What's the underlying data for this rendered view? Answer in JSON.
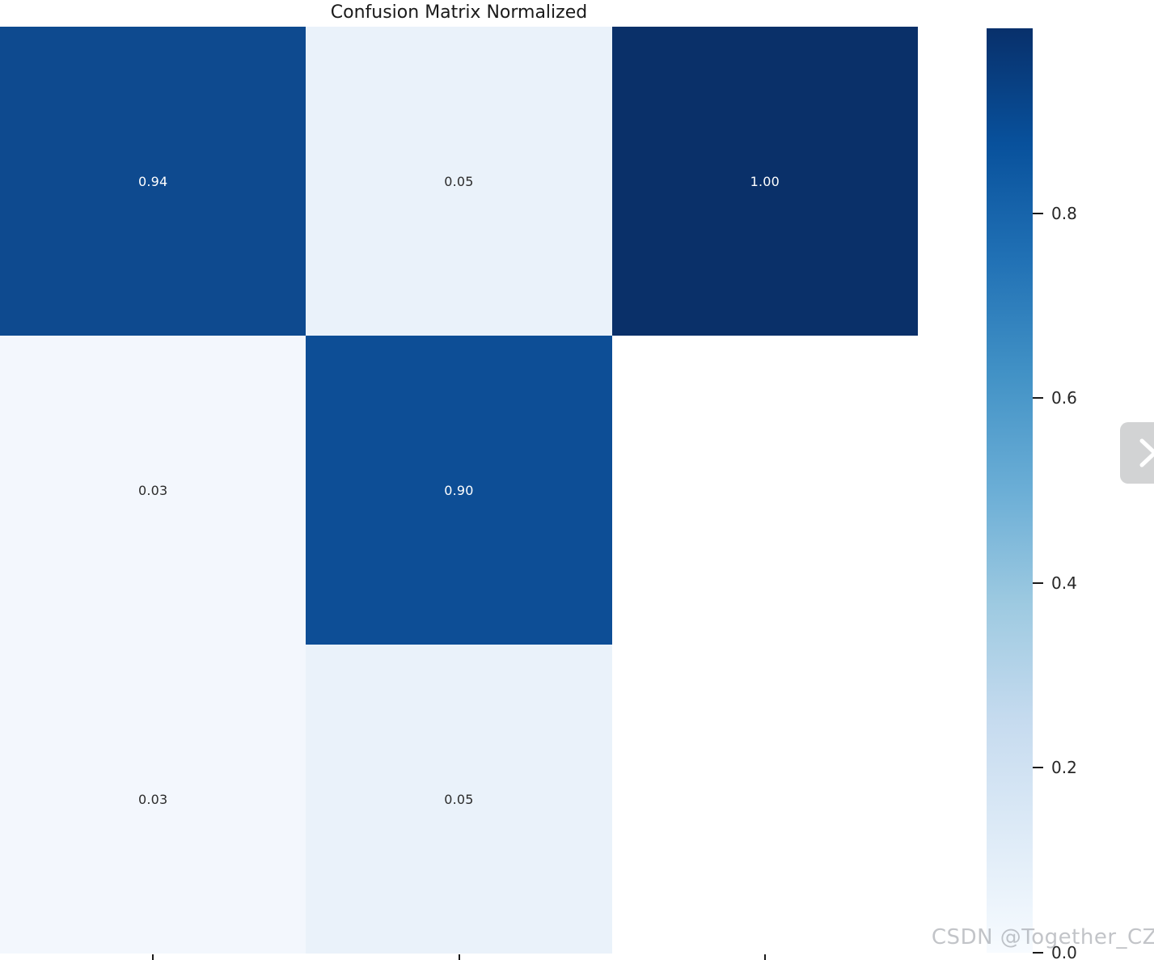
{
  "title": "Confusion Matrix Normalized",
  "watermark": "CSDN @Together_CZ",
  "next_button": {
    "icon": "chevron-right"
  },
  "chart_data": {
    "type": "heatmap",
    "title": "Confusion Matrix Normalized",
    "colormap": "Blues",
    "rows": 3,
    "cols": 3,
    "values": [
      [
        0.94,
        0.05,
        1.0
      ],
      [
        0.03,
        0.9,
        null
      ],
      [
        0.03,
        0.05,
        null
      ]
    ],
    "cells": [
      [
        {
          "label": "0.94",
          "bg": "#0e4a8f",
          "fg": "#ffffff"
        },
        {
          "label": "0.05",
          "bg": "#eaf2fa",
          "fg": "#2b2b2b"
        },
        {
          "label": "1.00",
          "bg": "#0a3069",
          "fg": "#ffffff"
        }
      ],
      [
        {
          "label": "0.03",
          "bg": "#f3f7fd",
          "fg": "#2b2b2b"
        },
        {
          "label": "0.90",
          "bg": "#0d4e96",
          "fg": "#ffffff"
        },
        {
          "label": "",
          "bg": "#ffffff",
          "fg": "#2b2b2b"
        }
      ],
      [
        {
          "label": "0.03",
          "bg": "#f3f7fd",
          "fg": "#2b2b2b"
        },
        {
          "label": "0.05",
          "bg": "#eaf2fa",
          "fg": "#2b2b2b"
        },
        {
          "label": "",
          "bg": "#ffffff",
          "fg": "#2b2b2b"
        }
      ]
    ],
    "x_tick_positions": [
      0,
      1,
      2
    ],
    "colorbar": {
      "range": [
        0.0,
        1.0
      ],
      "ticks": [
        {
          "label": "0.8",
          "value": 0.8
        },
        {
          "label": "0.6",
          "value": 0.6
        },
        {
          "label": "0.4",
          "value": 0.4
        },
        {
          "label": "0.2",
          "value": 0.2
        },
        {
          "label": "0.0",
          "value": 0.0
        }
      ],
      "gradient_top_to_bottom": [
        "#08306b",
        "#08519c",
        "#2171b5",
        "#4292c6",
        "#6baed6",
        "#9ecae1",
        "#c6dbef",
        "#deebf7",
        "#f7fbff"
      ]
    }
  }
}
